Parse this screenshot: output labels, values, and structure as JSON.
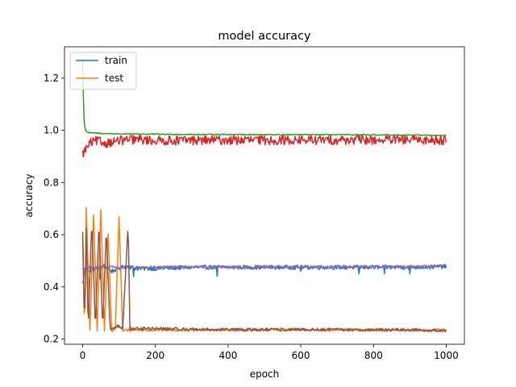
{
  "chart_data": {
    "type": "line",
    "title": "model accuracy",
    "xlabel": "epoch",
    "ylabel": "accuracy",
    "xlim": [
      -50,
      1050
    ],
    "ylim": [
      0.18,
      1.32
    ],
    "xticks": [
      0,
      200,
      400,
      600,
      800,
      1000
    ],
    "yticks": [
      0.2,
      0.4,
      0.6,
      0.8,
      1.0,
      1.2
    ],
    "xtick_labels": [
      "0",
      "200",
      "400",
      "600",
      "800",
      "1000"
    ],
    "ytick_labels": [
      "0.2",
      "0.4",
      "0.6",
      "0.8",
      "1.0",
      "1.2"
    ],
    "grid": false,
    "legend": {
      "location": "upper-left",
      "entries": [
        {
          "label": "train",
          "color": "#1f77b4"
        },
        {
          "label": "test",
          "color": "#ff7f0e"
        }
      ]
    },
    "series": [
      {
        "color": "#1f77b4",
        "x": [
          0,
          5,
          10,
          20,
          40,
          60,
          80,
          100,
          120,
          150,
          200,
          300,
          400,
          500,
          600,
          700,
          800,
          900,
          1000
        ],
        "y": [
          0.41,
          0.46,
          0.47,
          0.46,
          0.47,
          0.48,
          0.46,
          0.47,
          0.48,
          0.47,
          0.47,
          0.475,
          0.475,
          0.475,
          0.475,
          0.475,
          0.475,
          0.475,
          0.478
        ],
        "noise": 0.008,
        "spikes": [
          [
            48,
            0.43
          ],
          [
            140,
            0.44
          ],
          [
            205,
            0.43
          ],
          [
            370,
            0.44
          ],
          [
            600,
            0.46
          ],
          [
            760,
            0.45
          ],
          [
            830,
            0.45
          ],
          [
            900,
            0.45
          ]
        ]
      },
      {
        "color": "#ff7f0e",
        "x": [
          0,
          5,
          10,
          20,
          30,
          40,
          50,
          60,
          70,
          80,
          90,
          100,
          110,
          120,
          150,
          200,
          300,
          400,
          500,
          600,
          700,
          800,
          900,
          1000
        ],
        "y": [
          0.6,
          0.22,
          0.7,
          0.23,
          0.68,
          0.23,
          0.7,
          0.23,
          0.6,
          0.23,
          0.24,
          0.67,
          0.23,
          0.235,
          0.235,
          0.235,
          0.235,
          0.235,
          0.235,
          0.235,
          0.235,
          0.235,
          0.235,
          0.235
        ],
        "noise": 0.005
      },
      {
        "color": "#2ca02c",
        "x": [
          0,
          3,
          6,
          10,
          20,
          50,
          100,
          200,
          300,
          400,
          500,
          600,
          700,
          800,
          900,
          1000
        ],
        "y": [
          1.27,
          1.05,
          1.01,
          0.995,
          0.99,
          0.988,
          0.986,
          0.985,
          0.984,
          0.984,
          0.983,
          0.983,
          0.983,
          0.982,
          0.982,
          0.98
        ],
        "noise": 0.002
      },
      {
        "color": "#d62728",
        "x": [
          0,
          10,
          20,
          40,
          60,
          100,
          150,
          200,
          300,
          400,
          500,
          600,
          700,
          800,
          900,
          1000
        ],
        "y": [
          0.91,
          0.93,
          0.95,
          0.96,
          0.95,
          0.96,
          0.965,
          0.96,
          0.962,
          0.962,
          0.962,
          0.962,
          0.963,
          0.963,
          0.963,
          0.963
        ],
        "noise": 0.018
      },
      {
        "color": "#9467bd",
        "x": [
          0,
          10,
          20,
          50,
          100,
          200,
          300,
          400,
          500,
          600,
          700,
          800,
          900,
          1000
        ],
        "y": [
          0.47,
          0.47,
          0.475,
          0.475,
          0.475,
          0.475,
          0.476,
          0.476,
          0.476,
          0.477,
          0.477,
          0.478,
          0.478,
          0.48
        ],
        "noise": 0.005
      },
      {
        "color": "#8c564b",
        "x": [
          0,
          5,
          10,
          15,
          25,
          35,
          45,
          55,
          65,
          75,
          85,
          95,
          110,
          125,
          130,
          150,
          200,
          300,
          400,
          500,
          600,
          700,
          800,
          900,
          1000
        ],
        "y": [
          0.61,
          0.25,
          0.62,
          0.24,
          0.66,
          0.24,
          0.65,
          0.24,
          0.62,
          0.24,
          0.24,
          0.25,
          0.24,
          0.64,
          0.24,
          0.24,
          0.24,
          0.237,
          0.236,
          0.236,
          0.236,
          0.236,
          0.235,
          0.235,
          0.232
        ],
        "noise": 0.006
      }
    ]
  }
}
